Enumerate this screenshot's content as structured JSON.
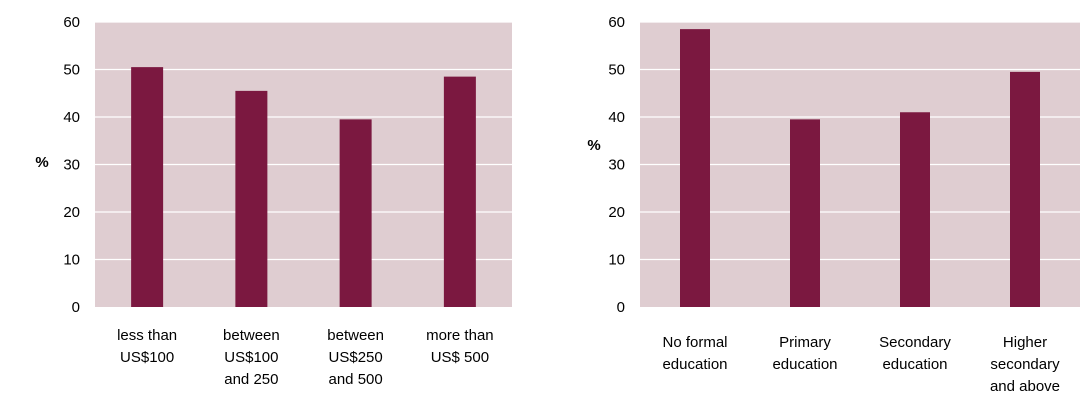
{
  "colors": {
    "plot_background": "#dfcdd1",
    "bar": "#7b1840",
    "gridline": "#ffffff"
  },
  "chart_data": [
    {
      "type": "bar",
      "title": "",
      "xlabel": "",
      "ylabel": "%",
      "ylim": [
        0,
        60
      ],
      "yticks": [
        "0",
        "10",
        "20",
        "30",
        "40",
        "50",
        "60"
      ],
      "grid": true,
      "categories": [
        [
          "less than",
          "US$100"
        ],
        [
          "between",
          "US$100",
          "and 250"
        ],
        [
          "between",
          "US$250",
          "and 500"
        ],
        [
          "more than",
          "US$ 500"
        ]
      ],
      "values": [
        50.5,
        45.5,
        39.5,
        48.5
      ]
    },
    {
      "type": "bar",
      "title": "",
      "xlabel": "",
      "ylabel": "%",
      "ylim": [
        0,
        60
      ],
      "yticks": [
        "0",
        "10",
        "20",
        "30",
        "40",
        "50",
        "60"
      ],
      "grid": true,
      "categories": [
        [
          "No formal",
          "education"
        ],
        [
          "Primary",
          "education"
        ],
        [
          "Secondary",
          "education"
        ],
        [
          "Higher",
          "secondary",
          "and above"
        ]
      ],
      "values": [
        58.5,
        39.5,
        41,
        49.5
      ]
    }
  ]
}
